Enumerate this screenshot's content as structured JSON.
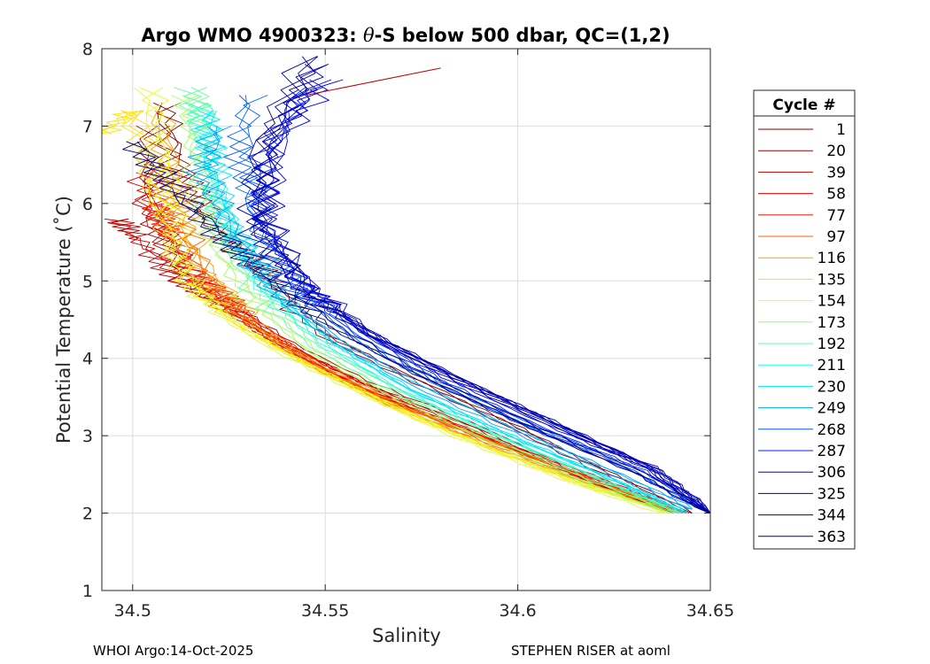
{
  "chart_data": {
    "type": "line",
    "title_prefix": "Argo WMO 4900323: ",
    "title_symbol": "θ",
    "title_suffix": "-S below 500 dbar,  QC=(1,2)",
    "xlabel": "Salinity",
    "ylabel": "Potential Temperature (˚C)",
    "xlim": [
      34.492,
      34.65
    ],
    "ylim": [
      1,
      8
    ],
    "xticks": [
      34.5,
      34.55,
      34.6,
      34.65
    ],
    "xtick_labels": [
      "34.5",
      "34.55",
      "34.6",
      "34.65"
    ],
    "yticks": [
      1,
      2,
      3,
      4,
      5,
      6,
      7,
      8
    ],
    "ytick_labels": [
      "1",
      "2",
      "3",
      "4",
      "5",
      "6",
      "7",
      "8"
    ],
    "grid": true,
    "legend_title": "Cycle #",
    "legend_position": "outside-right",
    "series": [
      {
        "name": "1",
        "color": "#800000",
        "x": [
          34.508,
          34.512,
          34.52,
          34.53,
          34.54,
          34.55,
          34.57,
          34.6,
          34.62,
          34.645
        ],
        "y": [
          7.3,
          6.5,
          5.8,
          5.3,
          4.8,
          4.3,
          3.8,
          3.1,
          2.6,
          2.0
        ]
      },
      {
        "name": "20",
        "color": "#a00000",
        "x": [
          34.505,
          34.504,
          34.512,
          34.525,
          34.54,
          34.56,
          34.59,
          34.615,
          34.64
        ],
        "y": [
          7.0,
          6.0,
          5.2,
          4.7,
          4.2,
          3.7,
          3.1,
          2.5,
          2.0
        ]
      },
      {
        "name": "39",
        "color": "#c00000",
        "x": [
          34.496,
          34.502,
          34.512,
          34.525,
          34.54,
          34.56,
          34.59,
          34.615,
          34.64
        ],
        "y": [
          5.8,
          5.5,
          5.0,
          4.6,
          4.1,
          3.6,
          3.0,
          2.5,
          2.0
        ]
      },
      {
        "name": "58",
        "color": "#e00000",
        "x": [
          34.503,
          34.506,
          34.515,
          34.528,
          34.542,
          34.562,
          34.59,
          34.618,
          34.642
        ],
        "y": [
          6.4,
          5.7,
          5.1,
          4.6,
          4.1,
          3.6,
          3.0,
          2.5,
          2.0
        ]
      },
      {
        "name": "77",
        "color": "#ff2000",
        "x": [
          34.506,
          34.51,
          34.518,
          34.53,
          34.545,
          34.565,
          34.592,
          34.62,
          34.643
        ],
        "y": [
          6.0,
          5.6,
          5.0,
          4.5,
          4.0,
          3.5,
          2.95,
          2.45,
          2.0
        ]
      },
      {
        "name": "97",
        "color": "#ff6000",
        "x": [
          34.508,
          34.512,
          34.52,
          34.532,
          34.548,
          34.568,
          34.594,
          34.62,
          34.64
        ],
        "y": [
          6.5,
          5.8,
          5.0,
          4.4,
          3.9,
          3.4,
          2.9,
          2.4,
          2.05
        ]
      },
      {
        "name": "116",
        "color": "#ffa000",
        "x": [
          34.507,
          34.511,
          34.518,
          34.53,
          34.546,
          34.566,
          34.592,
          34.618,
          34.638
        ],
        "y": [
          7.2,
          6.2,
          5.2,
          4.5,
          3.95,
          3.45,
          2.9,
          2.4,
          2.1
        ]
      },
      {
        "name": "135",
        "color": "#ffe000",
        "x": [
          34.492,
          34.5,
          34.506,
          34.514,
          34.528,
          34.546,
          34.566,
          34.592,
          34.618,
          34.64
        ],
        "y": [
          6.9,
          7.2,
          6.0,
          5.0,
          4.4,
          3.9,
          3.4,
          2.85,
          2.35,
          2.0
        ]
      },
      {
        "name": "154",
        "color": "#e0ff20",
        "x": [
          34.504,
          34.508,
          34.512,
          34.522,
          34.538,
          34.558,
          34.584,
          34.612,
          34.638
        ],
        "y": [
          7.5,
          6.5,
          5.2,
          4.6,
          4.1,
          3.6,
          3.0,
          2.45,
          2.0
        ]
      },
      {
        "name": "173",
        "color": "#a0ff60",
        "x": [
          34.514,
          34.516,
          34.52,
          34.53,
          34.546,
          34.566,
          34.592,
          34.618,
          34.64
        ],
        "y": [
          7.4,
          6.6,
          5.6,
          4.8,
          4.1,
          3.55,
          2.95,
          2.4,
          2.0
        ]
      },
      {
        "name": "192",
        "color": "#60ffa0",
        "x": [
          34.516,
          34.518,
          34.522,
          34.532,
          34.548,
          34.568,
          34.594,
          34.62,
          34.642
        ],
        "y": [
          7.5,
          6.8,
          5.8,
          4.9,
          4.15,
          3.6,
          3.0,
          2.45,
          2.0
        ]
      },
      {
        "name": "211",
        "color": "#20ffe0",
        "x": [
          34.518,
          34.52,
          34.524,
          34.534,
          34.55,
          34.57,
          34.596,
          34.622,
          34.643
        ],
        "y": [
          7.3,
          6.6,
          5.8,
          4.9,
          4.2,
          3.6,
          3.0,
          2.45,
          2.0
        ]
      },
      {
        "name": "230",
        "color": "#00e0ff",
        "x": [
          34.52,
          34.521,
          34.526,
          34.536,
          34.552,
          34.572,
          34.598,
          34.624,
          34.644
        ],
        "y": [
          7.2,
          6.5,
          5.7,
          4.9,
          4.2,
          3.6,
          3.0,
          2.45,
          2.0
        ]
      },
      {
        "name": "249",
        "color": "#00a0ff",
        "x": [
          34.522,
          34.518,
          34.526,
          34.538,
          34.554,
          34.574,
          34.6,
          34.626,
          34.645
        ],
        "y": [
          7.0,
          6.4,
          5.6,
          4.8,
          4.2,
          3.65,
          3.05,
          2.5,
          2.05
        ]
      },
      {
        "name": "268",
        "color": "#0060ff",
        "x": [
          34.53,
          34.528,
          34.532,
          34.542,
          34.558,
          34.578,
          34.604,
          34.63,
          34.648
        ],
        "y": [
          7.4,
          6.6,
          5.8,
          4.9,
          4.25,
          3.7,
          3.1,
          2.55,
          2.05
        ]
      },
      {
        "name": "287",
        "color": "#0020ff",
        "x": [
          34.545,
          34.535,
          34.533,
          34.544,
          34.56,
          34.58,
          34.606,
          34.632,
          34.648
        ],
        "y": [
          7.5,
          6.6,
          5.7,
          4.9,
          4.3,
          3.7,
          3.1,
          2.55,
          2.05
        ]
      },
      {
        "name": "306",
        "color": "#0000e0",
        "x": [
          34.55,
          34.538,
          34.534,
          34.546,
          34.562,
          34.582,
          34.608,
          34.634,
          34.65
        ],
        "y": [
          7.6,
          6.8,
          5.8,
          4.9,
          4.3,
          3.75,
          3.15,
          2.6,
          2.0
        ]
      },
      {
        "name": "325",
        "color": "#0000c0",
        "x": [
          34.548,
          34.536,
          34.534,
          34.546,
          34.562,
          34.584,
          34.61,
          34.636,
          34.65
        ],
        "y": [
          7.8,
          6.8,
          5.8,
          4.9,
          4.3,
          3.75,
          3.15,
          2.55,
          2.0
        ]
      },
      {
        "name": "344",
        "color": "#0000a0",
        "x": [
          34.546,
          34.532,
          34.532,
          34.546,
          34.564,
          34.586,
          34.612,
          34.636,
          34.65
        ],
        "y": [
          7.9,
          6.6,
          5.6,
          4.8,
          4.25,
          3.7,
          3.1,
          2.55,
          2.0
        ]
      },
      {
        "name": "363",
        "color": "#000080",
        "x": [
          34.5,
          34.51,
          34.522,
          34.536,
          34.552,
          34.574,
          34.604,
          34.632,
          34.65
        ],
        "y": [
          6.8,
          6.2,
          5.6,
          5.0,
          4.4,
          3.8,
          3.1,
          2.5,
          2.0
        ]
      }
    ],
    "outlier_series": {
      "name": "20",
      "color": "#c00000",
      "x": [
        34.545,
        34.58
      ],
      "y": [
        7.4,
        7.75
      ]
    }
  },
  "footer": {
    "left": "WHOI Argo:14-Oct-2025",
    "right": "STEPHEN RISER at aoml"
  }
}
